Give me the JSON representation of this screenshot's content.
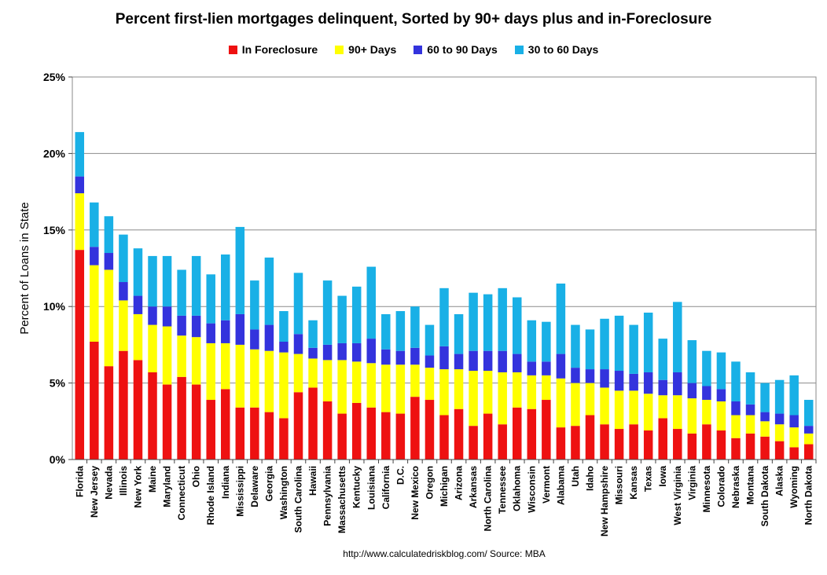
{
  "chart_data": {
    "type": "bar",
    "stacked": true,
    "title": "Percent first-lien mortgages delinquent, Sorted by 90+ days plus and in-Foreclosure",
    "xlabel": "",
    "ylabel": "Percent of Loans in State",
    "ylim": [
      0,
      25
    ],
    "yticks": [
      0,
      5,
      10,
      15,
      20,
      25
    ],
    "ytick_labels": [
      "0%",
      "5%",
      "10%",
      "15%",
      "20%",
      "25%"
    ],
    "grid": true,
    "legend_position": "top",
    "categories": [
      "Florida",
      "New Jersey",
      "Nevada",
      "Illinois",
      "New York",
      "Maine",
      "Maryland",
      "Connecticut",
      "Ohio",
      "Rhode Island",
      "Indiana",
      "Mississippi",
      "Delaware",
      "Georgia",
      "Washington",
      "South Carolina",
      "Hawaii",
      "Pennsylvania",
      "Massachusetts",
      "Kentucky",
      "Louisiana",
      "California",
      "D.C.",
      "New Mexico",
      "Oregon",
      "Michigan",
      "Arizona",
      "Arkansas",
      "North Carolina",
      "Tennessee",
      "Oklahoma",
      "Wisconsin",
      "Vermont",
      "Alabama",
      "Utah",
      "Idaho",
      "New Hampshire",
      "Missouri",
      "Kansas",
      "Texas",
      "Iowa",
      "West Virginia",
      "Virginia",
      "Minnesota",
      "Colorado",
      "Nebraska",
      "Montana",
      "South Dakota",
      "Alaska",
      "Wyoming",
      "North Dakota"
    ],
    "series": [
      {
        "name": "In Foreclosure",
        "color": "#ee1111",
        "values": [
          13.7,
          7.7,
          6.1,
          7.1,
          6.5,
          5.7,
          4.9,
          5.4,
          4.9,
          3.9,
          4.6,
          3.4,
          3.4,
          3.1,
          2.7,
          4.4,
          4.7,
          3.8,
          3.0,
          3.7,
          3.4,
          3.1,
          3.0,
          4.1,
          3.9,
          2.9,
          3.3,
          2.2,
          3.0,
          2.3,
          3.4,
          3.3,
          3.9,
          2.1,
          2.2,
          2.9,
          2.3,
          2.0,
          2.3,
          1.9,
          2.7,
          2.0,
          1.7,
          2.3,
          1.9,
          1.4,
          1.7,
          1.5,
          1.2,
          0.8,
          1.0
        ]
      },
      {
        "name": "90+ Days",
        "color": "#ffff00",
        "values": [
          3.7,
          5.0,
          6.3,
          3.3,
          3.0,
          3.1,
          3.8,
          2.7,
          3.1,
          3.7,
          3.0,
          4.1,
          3.8,
          4.0,
          4.3,
          2.5,
          1.9,
          2.7,
          3.5,
          2.7,
          2.9,
          3.1,
          3.2,
          2.1,
          2.1,
          3.0,
          2.6,
          3.6,
          2.8,
          3.4,
          2.3,
          2.2,
          1.6,
          3.2,
          2.8,
          2.1,
          2.4,
          2.5,
          2.2,
          2.4,
          1.5,
          2.2,
          2.3,
          1.6,
          1.9,
          1.5,
          1.2,
          1.0,
          1.1,
          1.3,
          0.7
        ]
      },
      {
        "name": "60 to 90 Days",
        "color": "#3333dd",
        "values": [
          1.1,
          1.2,
          1.1,
          1.2,
          1.2,
          1.2,
          1.3,
          1.3,
          1.4,
          1.3,
          1.5,
          2.0,
          1.3,
          1.7,
          0.7,
          1.3,
          0.7,
          1.0,
          1.1,
          1.2,
          1.6,
          1.0,
          0.9,
          1.1,
          0.8,
          1.5,
          1.0,
          1.3,
          1.3,
          1.4,
          1.2,
          0.9,
          0.9,
          1.6,
          1.0,
          0.9,
          1.2,
          1.3,
          1.1,
          1.4,
          1.0,
          1.5,
          1.0,
          0.9,
          0.8,
          0.9,
          0.7,
          0.6,
          0.7,
          0.8,
          0.5
        ]
      },
      {
        "name": "30 to 60 Days",
        "color": "#19b0e6",
        "values": [
          2.9,
          2.9,
          2.4,
          3.1,
          3.1,
          3.3,
          3.3,
          3.0,
          3.9,
          3.2,
          4.3,
          5.7,
          3.2,
          4.4,
          2.0,
          4.0,
          1.8,
          4.2,
          3.1,
          3.7,
          4.7,
          2.3,
          2.6,
          2.7,
          2.0,
          3.8,
          2.6,
          3.8,
          3.7,
          4.1,
          3.7,
          2.7,
          2.6,
          4.6,
          2.8,
          2.6,
          3.3,
          3.6,
          3.2,
          3.9,
          2.7,
          4.6,
          2.8,
          2.3,
          2.4,
          2.6,
          2.1,
          1.9,
          2.2,
          2.6,
          1.7
        ]
      }
    ]
  },
  "source": "http://www.calculatedriskblog.com/  Source: MBA"
}
